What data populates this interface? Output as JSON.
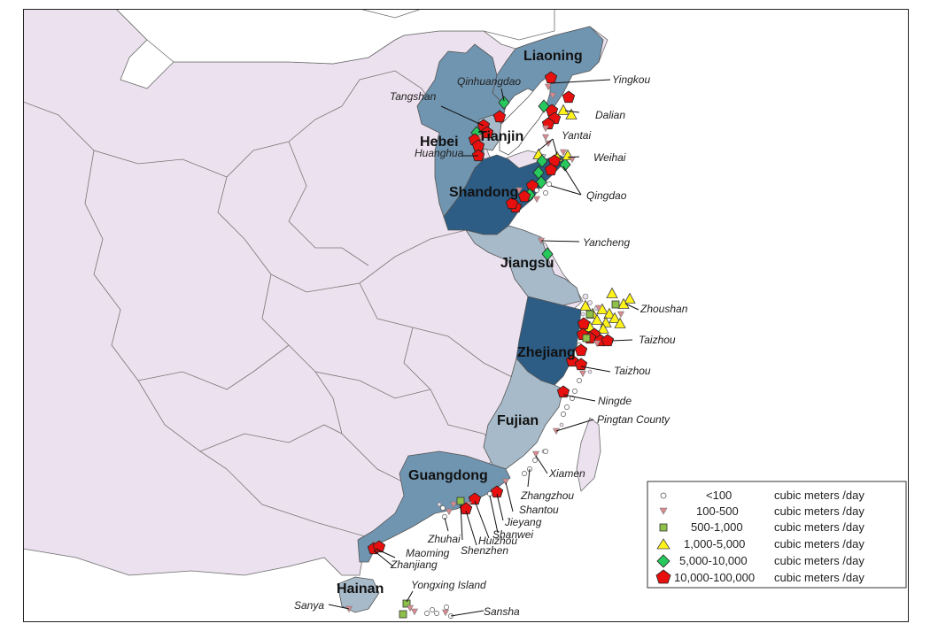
{
  "colors": {
    "background_land": "#ece1ee",
    "sea": "#ffffff",
    "province_light": "#a7bac9",
    "province_mid": "#7095b1",
    "province_dark": "#2d5c84",
    "border": "#6b6b6b",
    "marker_red": "#e8100e",
    "marker_green": "#27c95c",
    "marker_yellow": "#fff31a",
    "marker_olive": "#8fc04a",
    "marker_pink": "#d98a8f"
  },
  "provinces": {
    "liaoning": "Liaoning",
    "hebei": "Hebei",
    "tianjin": "Tianjin",
    "shandong": "Shandong",
    "jiangsu": "Jiangsu",
    "zhejiang": "Zhejiang",
    "fujian": "Fujian",
    "guangdong": "Guangdong",
    "hainan": "Hainan"
  },
  "cities": {
    "yingkou": "Yingkou",
    "qinhuangdao": "Qinhuangdao",
    "tangshan": "Tangshan",
    "dalian": "Dalian",
    "yantai": "Yantai",
    "weihai": "Weihai",
    "huanghua": "Huanghua",
    "qingdao": "Qingdao",
    "yancheng": "Yancheng",
    "zhoushan": "Zhoushan",
    "taizhou_1": "Taizhou",
    "taizhou_2": "Taizhou",
    "ningde": "Ningde",
    "pingtan": "Pingtan County",
    "xiamen": "Xiamen",
    "zhangzhou": "Zhangzhou",
    "shantou": "Shantou",
    "jieyang": "Jieyang",
    "shanwei": "Shanwei",
    "huizhou": "Huizhou",
    "shenzhen": "Shenzhen",
    "zhuhai": "Zhuhai",
    "maoming": "Maoming",
    "zhanjiang": "Zhanjiang",
    "yongxing": "Yongxing Island",
    "sanya": "Sanya",
    "sansha": "Sansha"
  },
  "legend": {
    "items": [
      {
        "range": "<100",
        "unit": "cubic meters /day",
        "icon": "white-circle"
      },
      {
        "range": "100-500",
        "unit": "cubic meters /day",
        "icon": "pink-triangle-down"
      },
      {
        "range": "500-1,000",
        "unit": "cubic meters /day",
        "icon": "olive-square"
      },
      {
        "range": "1,000-5,000",
        "unit": "cubic meters /day",
        "icon": "yellow-triangle-up"
      },
      {
        "range": "5,000-10,000",
        "unit": "cubic meters /day",
        "icon": "green-diamond"
      },
      {
        "range": "10,000-100,000",
        "unit": "cubic meters /day",
        "icon": "red-pentagon"
      }
    ]
  }
}
